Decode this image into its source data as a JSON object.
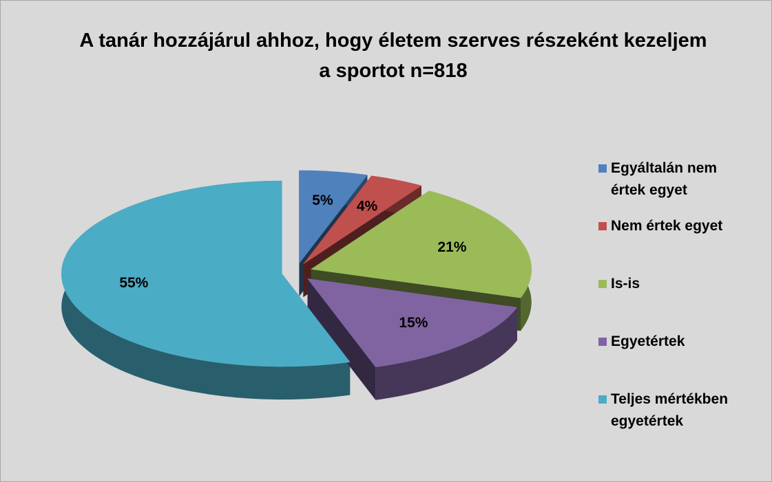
{
  "chart_data": {
    "type": "pie",
    "title": "A tanár hozzájárul ahhoz, hogy életem szerves részeként kezeljem a sportot n=818",
    "categories": [
      "Egyáltalán nem értek egyet",
      "Nem értek egyet",
      "Is-is",
      "Egyetértek",
      "Teljes mértékben egyetértek"
    ],
    "values": [
      5,
      4,
      21,
      15,
      55
    ],
    "value_labels": [
      "5%",
      "4%",
      "21%",
      "15%",
      "55%"
    ],
    "colors": [
      "#4f81bd",
      "#c0504d",
      "#9bbb59",
      "#8064a2",
      "#4bacc6"
    ],
    "legend": "right"
  }
}
